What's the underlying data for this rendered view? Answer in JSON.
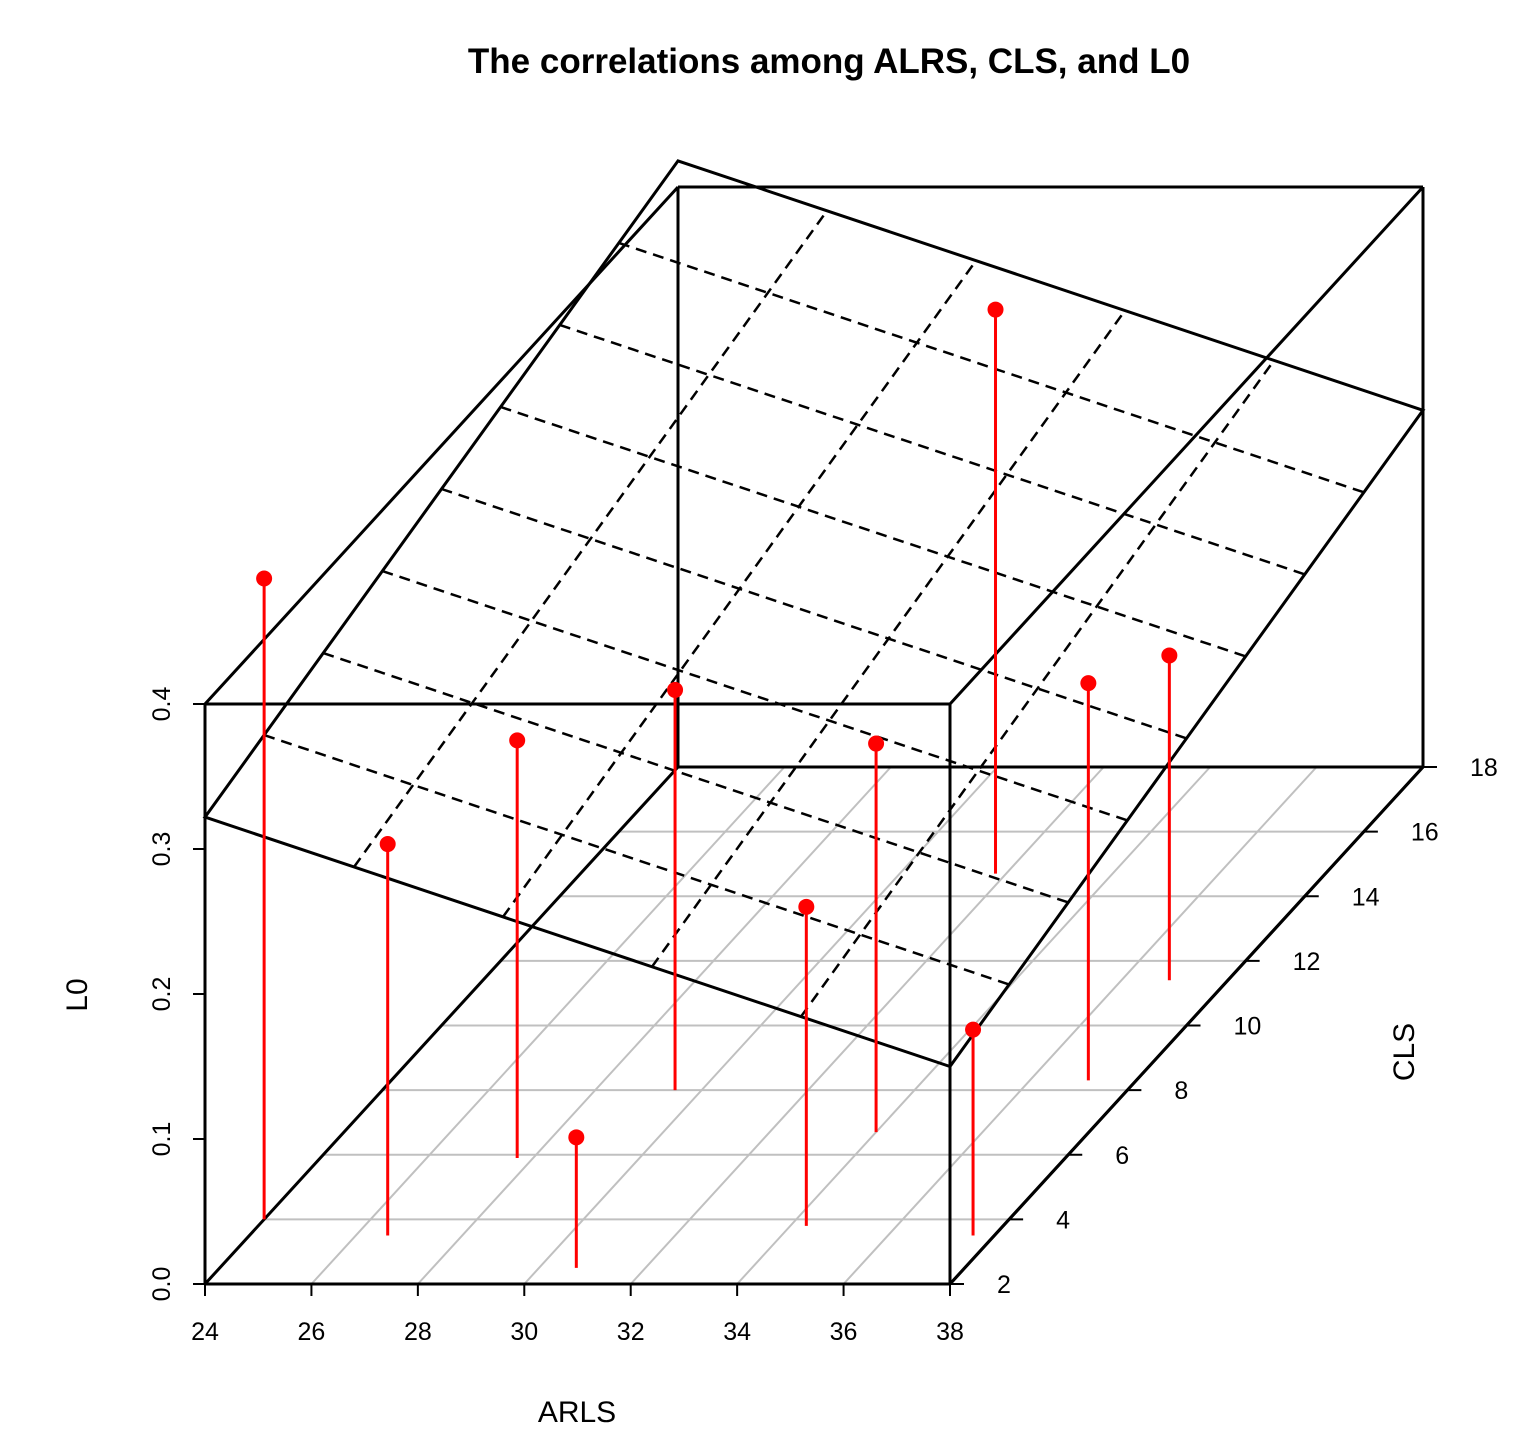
{
  "chart_data": {
    "type": "scatter",
    "subtype": "3d-scatter-with-fitted-plane",
    "title": "The correlations among ALRS, CLS, and L0",
    "xlabel": "ARLS",
    "ylabel": "CLS",
    "zlabel": "L0",
    "xlim": [
      24,
      38
    ],
    "ylim": [
      2,
      18
    ],
    "zlim": [
      0.0,
      0.4
    ],
    "x_ticks": [
      "24",
      "26",
      "28",
      "30",
      "32",
      "34",
      "36",
      "38"
    ],
    "y_ticks": [
      "2",
      "4",
      "6",
      "8",
      "10",
      "12",
      "14",
      "16",
      "18"
    ],
    "z_ticks": [
      "0.0",
      "0.1",
      "0.2",
      "0.3",
      "0.4"
    ],
    "grid": true,
    "points": [
      {
        "x": 24.0,
        "y": 4.0,
        "z": 0.442
      },
      {
        "x": 26.6,
        "y": 3.5,
        "z": 0.27
      },
      {
        "x": 27.7,
        "y": 5.9,
        "z": 0.288
      },
      {
        "x": 30.7,
        "y": 2.5,
        "z": 0.09
      },
      {
        "x": 29.5,
        "y": 8.0,
        "z": 0.276
      },
      {
        "x": 31.8,
        "y": 14.7,
        "z": 0.389
      },
      {
        "x": 34.3,
        "y": 3.8,
        "z": 0.22
      },
      {
        "x": 34.0,
        "y": 6.7,
        "z": 0.268
      },
      {
        "x": 37.6,
        "y": 3.5,
        "z": 0.142
      },
      {
        "x": 37.1,
        "y": 8.3,
        "z": 0.274
      },
      {
        "x": 36.9,
        "y": 11.4,
        "z": 0.224
      }
    ],
    "fitted_plane": {
      "corners": [
        {
          "x": 24,
          "y": 2,
          "z": 0.322
        },
        {
          "x": 38,
          "y": 2,
          "z": 0.15
        },
        {
          "x": 38,
          "y": 18,
          "z": 0.245
        },
        {
          "x": 24,
          "y": 18,
          "z": 0.418
        }
      ],
      "style": "dashed-grid"
    },
    "point_color": "#ff0000",
    "stem_color": "#ff0000",
    "floor_grid_color": "#c0c0c0",
    "frame_color": "#000000"
  }
}
